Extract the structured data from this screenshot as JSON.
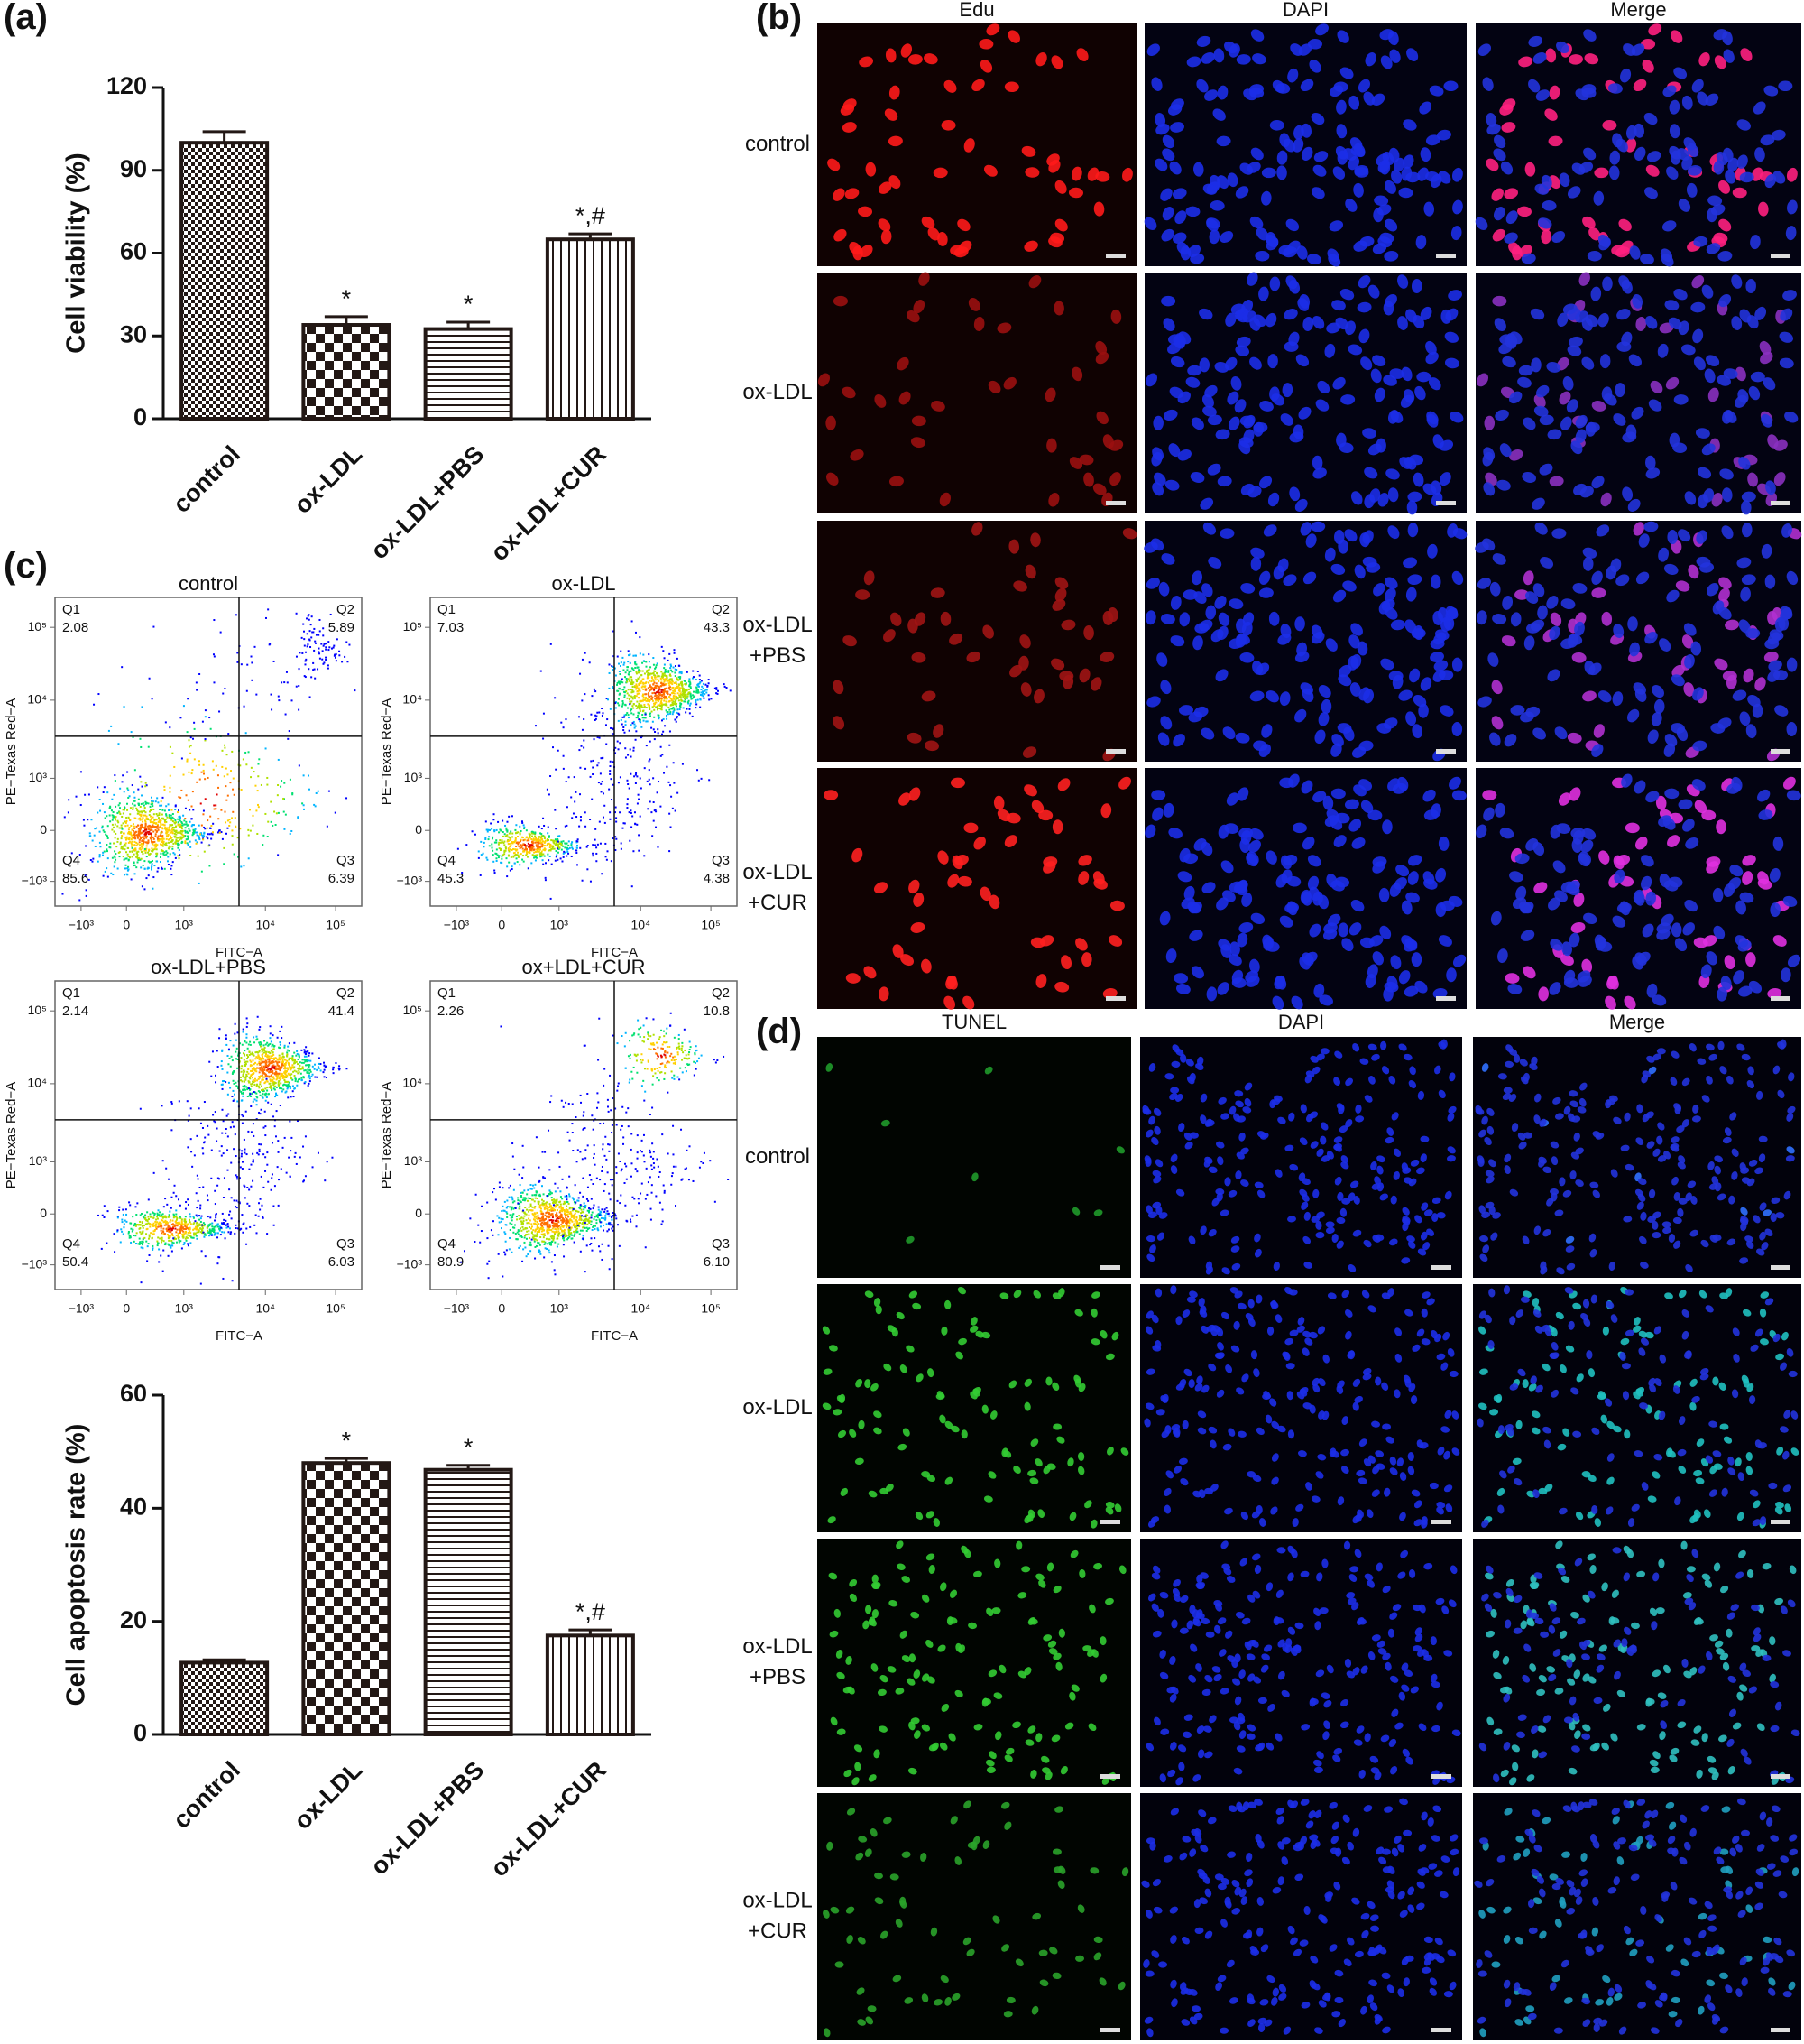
{
  "chart_data": [
    {
      "type": "bar",
      "panel_label": "(a)",
      "y_label": "Cell viability (%)",
      "categories": [
        "control",
        "ox-LDL",
        "ox-LDL+PBS",
        "ox-LDL+CUR"
      ],
      "values": [
        100,
        34,
        32.5,
        65
      ],
      "errors": [
        4,
        3,
        2.5,
        2
      ],
      "annotations": [
        null,
        "*",
        "*",
        "*,#"
      ],
      "hatches": [
        "fine-check",
        "check",
        "hlines",
        "vlines"
      ],
      "color": "#231815",
      "ylim": [
        0,
        120
      ],
      "yticks": [
        0,
        30,
        60,
        90,
        120
      ]
    },
    {
      "type": "bar",
      "y_label": "Cell apoptosis rate (%)",
      "categories": [
        "control",
        "ox-LDL",
        "ox-LDL+PBS",
        "ox-LDL+CUR"
      ],
      "values": [
        12.7,
        48,
        46.8,
        17.5
      ],
      "errors": [
        0.5,
        0.8,
        0.8,
        1
      ],
      "annotations": [
        null,
        "*",
        "*",
        "*,#"
      ],
      "hatches": [
        "fine-check",
        "check",
        "hlines",
        "vlines"
      ],
      "color": "#231815",
      "ylim": [
        0,
        60
      ],
      "yticks": [
        0,
        20,
        40,
        60
      ]
    }
  ],
  "flow_cytometry": {
    "panel_label": "(c)",
    "y_label": "PE−Texas Red−A",
    "x_label": "FITC−A",
    "x_tick_labels": [
      "−10³",
      "0",
      "10³",
      "10⁴",
      "10⁵"
    ],
    "y_tick_labels": [
      "10⁵",
      "10⁴",
      "10³",
      "0",
      "−10³"
    ],
    "plots": [
      {
        "title": "control",
        "quadrants": [
          {
            "name": "Q1",
            "value": "2.08"
          },
          {
            "name": "Q2",
            "value": "5.89"
          },
          {
            "name": "Q3",
            "value": "6.39"
          },
          {
            "name": "Q4",
            "value": "85.6"
          }
        ]
      },
      {
        "title": "ox-LDL",
        "quadrants": [
          {
            "name": "Q1",
            "value": "7.03"
          },
          {
            "name": "Q2",
            "value": "43.3"
          },
          {
            "name": "Q3",
            "value": "4.38"
          },
          {
            "name": "Q4",
            "value": "45.3"
          }
        ]
      },
      {
        "title": "ox-LDL+PBS",
        "quadrants": [
          {
            "name": "Q1",
            "value": "2.14"
          },
          {
            "name": "Q2",
            "value": "41.4"
          },
          {
            "name": "Q3",
            "value": "6.03"
          },
          {
            "name": "Q4",
            "value": "50.4"
          }
        ]
      },
      {
        "title": "ox+LDL+CUR",
        "quadrants": [
          {
            "name": "Q1",
            "value": "2.26"
          },
          {
            "name": "Q2",
            "value": "10.8"
          },
          {
            "name": "Q3",
            "value": "6.10"
          },
          {
            "name": "Q4",
            "value": "80.9"
          }
        ]
      }
    ]
  },
  "edu_panel": {
    "panel_label": "(b)",
    "columns": [
      "Edu",
      "DAPI",
      "Merge"
    ],
    "rows": [
      [
        "control"
      ],
      [
        "ox-LDL"
      ],
      [
        "ox-LDL",
        "+PBS"
      ],
      [
        "ox-LDL",
        "+CUR"
      ]
    ]
  },
  "tunel_panel": {
    "panel_label": "(d)",
    "columns": [
      "TUNEL",
      "DAPI",
      "Merge"
    ],
    "rows": [
      [
        "control"
      ],
      [
        "ox-LDL"
      ],
      [
        "ox-LDL",
        "+PBS"
      ],
      [
        "ox-LDL",
        "+CUR"
      ]
    ]
  }
}
